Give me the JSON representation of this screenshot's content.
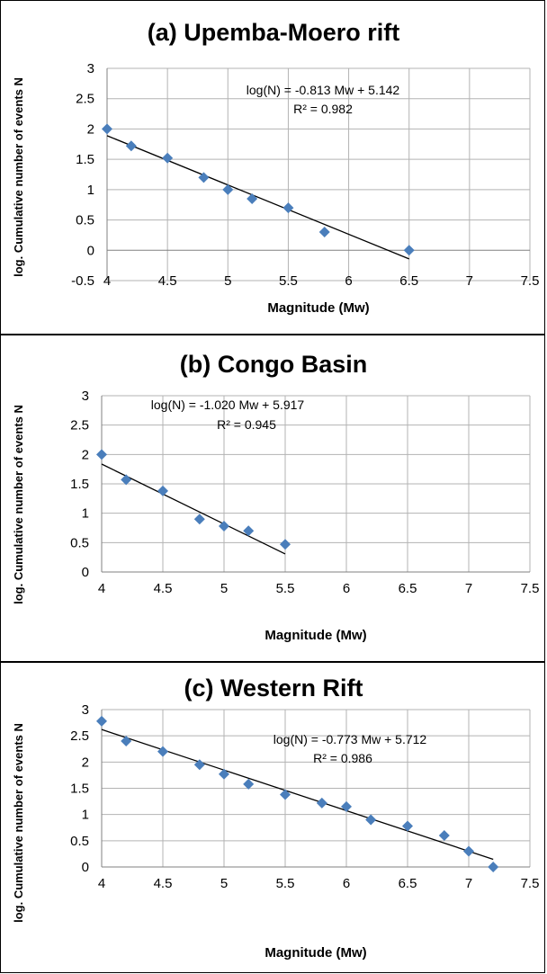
{
  "colors": {
    "marker": "#4a7ebb",
    "trendline": "#000000",
    "grid": "#b3b3b3",
    "background": "#ffffff"
  },
  "chart_data": [
    {
      "type": "scatter",
      "title": "(a) Upemba-Moero rift",
      "xlabel": "Magnitude (Mw)",
      "ylabel": "log. Cumulative number of events N",
      "xlim": [
        4,
        7.5
      ],
      "ylim": [
        -0.5,
        3
      ],
      "xticks": [
        "4",
        "4.5",
        "5",
        "5.5",
        "6",
        "6.5",
        "7",
        "7.5"
      ],
      "yticks": [
        "-0.5",
        "0",
        "0.5",
        "1",
        "1.5",
        "2",
        "2.5",
        "3"
      ],
      "grid": true,
      "series": [
        {
          "x": [
            4.0,
            4.2,
            4.5,
            4.8,
            5.0,
            5.2,
            5.5,
            5.8,
            6.5
          ],
          "y": [
            2.0,
            1.72,
            1.52,
            1.2,
            1.0,
            0.85,
            0.7,
            0.3,
            0.0
          ]
        }
      ],
      "trendline": {
        "slope": -0.813,
        "intercept": 5.142,
        "x_range": [
          4.0,
          6.5
        ]
      },
      "equation": "log(N) = -0.813 Mw + 5.142",
      "r2": "R² = 0.982"
    },
    {
      "type": "scatter",
      "title": "(b) Congo Basin",
      "xlabel": "Magnitude (Mw)",
      "ylabel": "log. Cumulative number of events N",
      "xlim": [
        4,
        7.5
      ],
      "ylim": [
        0,
        3
      ],
      "xticks": [
        "4",
        "4.5",
        "5",
        "5.5",
        "6",
        "6.5",
        "7",
        "7.5"
      ],
      "yticks": [
        "0",
        "0.5",
        "1",
        "1.5",
        "2",
        "2.5",
        "3"
      ],
      "grid": true,
      "series": [
        {
          "x": [
            4.0,
            4.2,
            4.5,
            4.8,
            5.0,
            5.2,
            5.5
          ],
          "y": [
            2.0,
            1.57,
            1.38,
            0.9,
            0.78,
            0.7,
            0.47
          ]
        }
      ],
      "trendline": {
        "slope": -1.02,
        "intercept": 5.917,
        "x_range": [
          4.0,
          5.5
        ]
      },
      "equation": "log(N) = -1.020 Mw + 5.917",
      "r2": "R² = 0.945"
    },
    {
      "type": "scatter",
      "title": "(c) Western Rift",
      "xlabel": "Magnitude (Mw)",
      "ylabel": "log. Cumulative number of events N",
      "xlim": [
        4,
        7.5
      ],
      "ylim": [
        0,
        3
      ],
      "xticks": [
        "4",
        "4.5",
        "5",
        "5.5",
        "6",
        "6.5",
        "7",
        "7.5"
      ],
      "yticks": [
        "0",
        "0.5",
        "1",
        "1.5",
        "2",
        "2.5",
        "3"
      ],
      "grid": true,
      "series": [
        {
          "x": [
            4.0,
            4.2,
            4.5,
            4.8,
            5.0,
            5.2,
            5.5,
            5.8,
            6.0,
            6.2,
            6.5,
            6.8,
            7.0,
            7.2
          ],
          "y": [
            2.78,
            2.4,
            2.2,
            1.95,
            1.77,
            1.58,
            1.38,
            1.22,
            1.15,
            0.9,
            0.78,
            0.6,
            0.3,
            0.0
          ]
        }
      ],
      "trendline": {
        "slope": -0.773,
        "intercept": 5.712,
        "x_range": [
          4.0,
          7.2
        ]
      },
      "equation": "log(N) = -0.773 Mw + 5.712",
      "r2": "R² = 0.986"
    }
  ]
}
